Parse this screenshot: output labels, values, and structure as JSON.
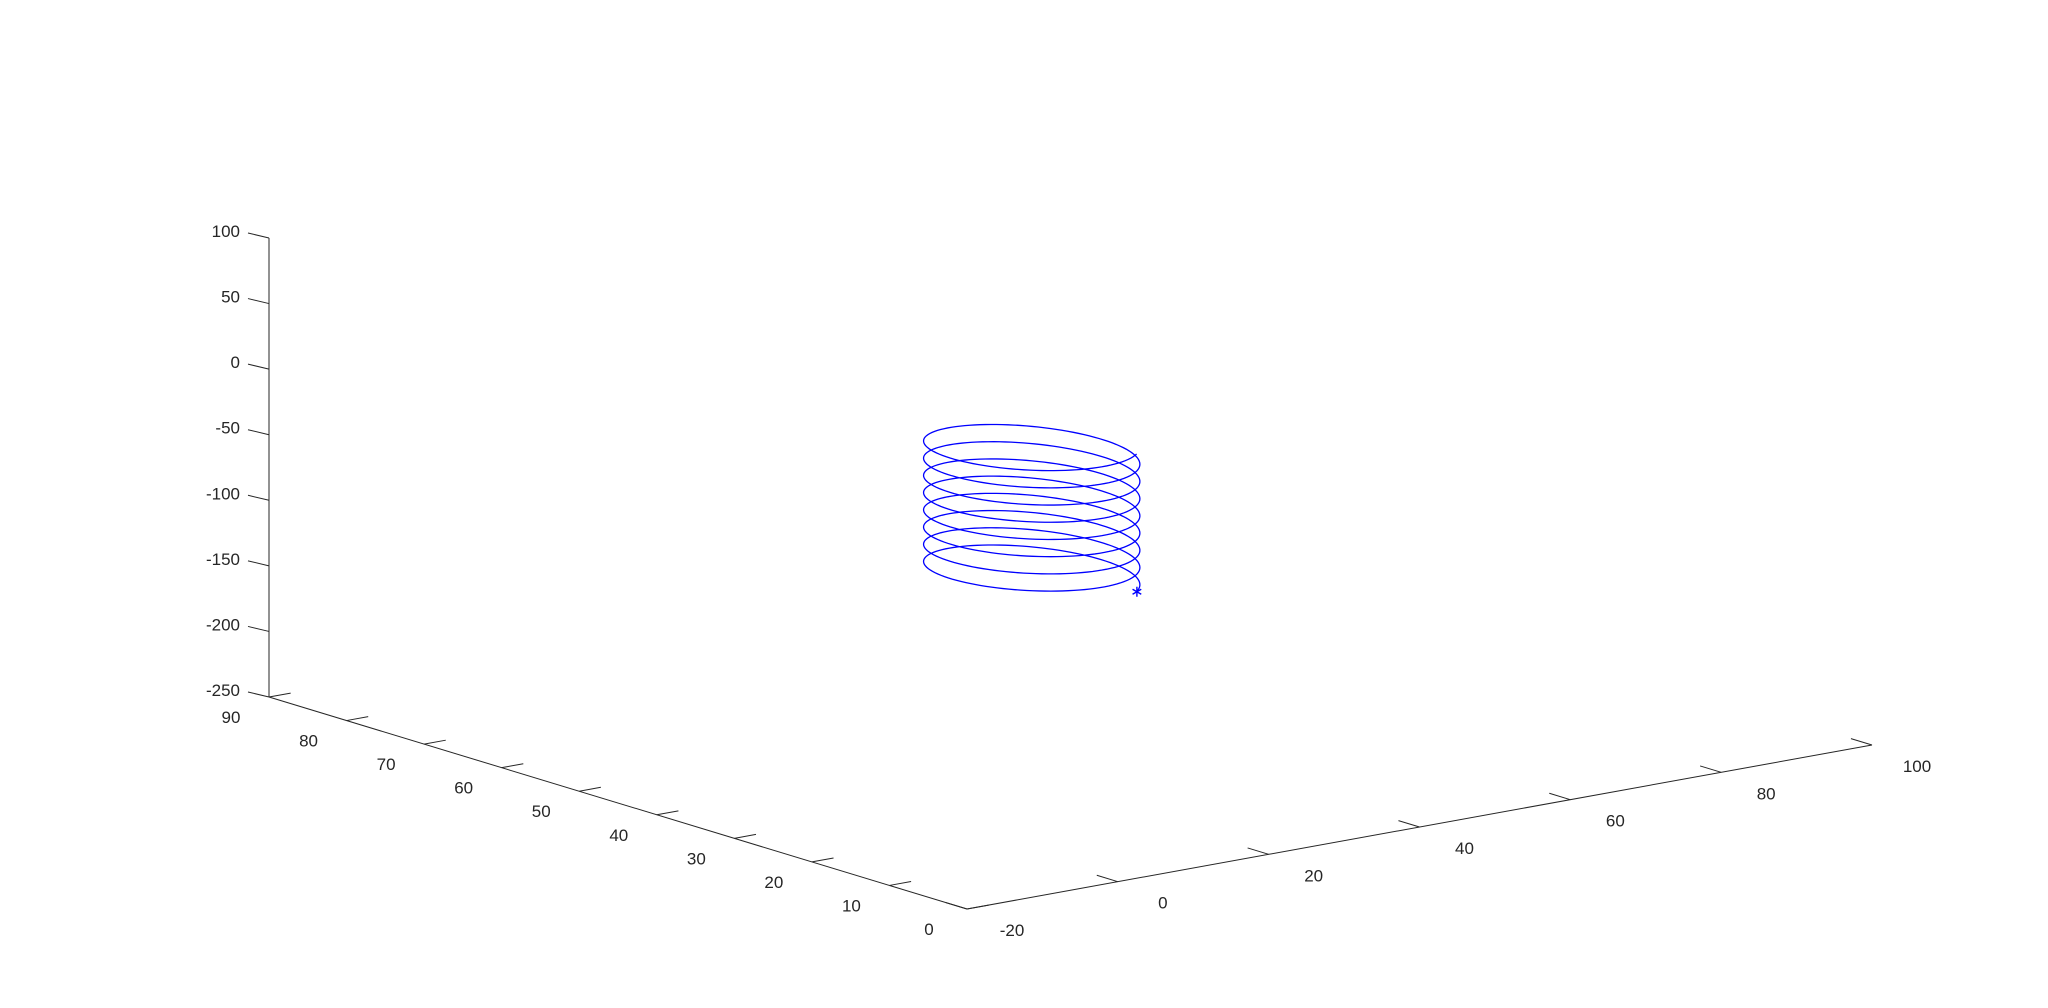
{
  "chart_data": {
    "type": "line",
    "dimensions": "3d",
    "title": "",
    "xlabel": "",
    "ylabel": "",
    "zlabel": "",
    "grid": false,
    "xlim": [
      -20,
      100
    ],
    "ylim": [
      0,
      90
    ],
    "zlim": [
      -250,
      100
    ],
    "x_ticks": [
      -20,
      0,
      20,
      40,
      60,
      80,
      100
    ],
    "y_ticks": [
      0,
      10,
      20,
      30,
      40,
      50,
      60,
      70,
      80,
      90
    ],
    "z_ticks": [
      -250,
      -200,
      -150,
      -100,
      -50,
      0,
      50,
      100
    ],
    "x_tick_labels": [
      "-20",
      "0",
      "20",
      "40",
      "60",
      "80",
      "100"
    ],
    "y_tick_labels": [
      "0",
      "10",
      "20",
      "30",
      "40",
      "50",
      "60",
      "70",
      "80",
      "90"
    ],
    "z_tick_labels": [
      "-250",
      "-200",
      "-150",
      "-100",
      "-50",
      "0",
      "50",
      "100"
    ],
    "series": [
      {
        "color": "#0000ff",
        "helix": {
          "center_x": 40,
          "center_y": 50,
          "radius": 10,
          "z_start": -150,
          "z_end": -45,
          "turns": 8,
          "start_angle_deg": -60
        },
        "start_marker": {
          "symbol": "*",
          "x": 45,
          "y": 41.3,
          "z": -150
        }
      }
    ]
  }
}
